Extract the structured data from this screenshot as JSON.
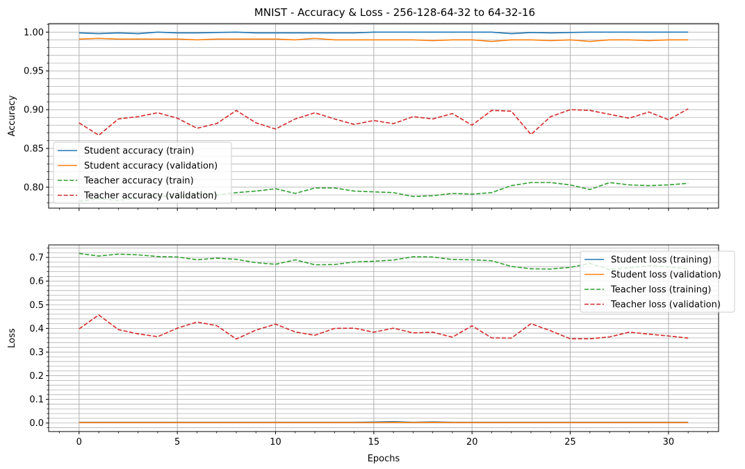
{
  "figure": {
    "title": "MNIST - Accuracy & Loss - 256-128-64-32 to 64-32-16"
  },
  "chart_data": [
    {
      "type": "line",
      "title": "MNIST - Accuracy & Loss - 256-128-64-32 to 64-32-16",
      "xlabel": "",
      "ylabel": "Accuracy",
      "xlim": [
        -1.55,
        32.55
      ],
      "ylim": [
        0.773,
        1.011
      ],
      "x": [
        0,
        1,
        2,
        3,
        4,
        5,
        6,
        7,
        8,
        9,
        10,
        11,
        12,
        13,
        14,
        15,
        16,
        17,
        18,
        19,
        20,
        21,
        22,
        23,
        24,
        25,
        26,
        27,
        28,
        29,
        30,
        31
      ],
      "xticks": [
        0,
        5,
        10,
        15,
        20,
        25,
        30
      ],
      "xtick_labels": [
        "0",
        "5",
        "10",
        "15",
        "20",
        "25",
        "30"
      ],
      "yticks": [
        0.8,
        0.85,
        0.9,
        0.95,
        1.0
      ],
      "ytick_labels": [
        "0.80",
        "0.85",
        "0.90",
        "0.95",
        "1.00"
      ],
      "grid": true,
      "minor_grid": true,
      "legend": "lower-left",
      "series": [
        {
          "name": "Student accuracy (train)",
          "color": "#1f77b4",
          "dash": "solid",
          "values": [
            0.999,
            0.998,
            0.999,
            0.998,
            1.0,
            0.999,
            0.999,
            0.9995,
            1.0,
            0.999,
            0.999,
            0.999,
            0.999,
            0.999,
            0.999,
            1.0,
            1.0,
            1.0,
            1.0,
            1.0,
            1.0,
            1.0,
            0.998,
            0.9995,
            0.999,
            0.9995,
            1.0,
            1.0,
            1.0,
            1.0,
            1.0,
            1.0
          ]
        },
        {
          "name": "Student accuracy (validation)",
          "color": "#ff7f0e",
          "dash": "solid",
          "values": [
            0.991,
            0.992,
            0.991,
            0.991,
            0.991,
            0.991,
            0.99,
            0.991,
            0.991,
            0.991,
            0.991,
            0.99,
            0.992,
            0.99,
            0.99,
            0.99,
            0.99,
            0.99,
            0.989,
            0.99,
            0.99,
            0.988,
            0.99,
            0.99,
            0.989,
            0.99,
            0.988,
            0.99,
            0.99,
            0.989,
            0.99,
            0.99
          ]
        },
        {
          "name": "Teacher accuracy (train)",
          "color": "#2ca02c",
          "dash": "dashed",
          "values": [
            0.782,
            0.785,
            0.783,
            0.786,
            0.789,
            0.787,
            0.791,
            0.79,
            0.793,
            0.795,
            0.798,
            0.792,
            0.799,
            0.799,
            0.795,
            0.794,
            0.793,
            0.788,
            0.789,
            0.792,
            0.791,
            0.793,
            0.802,
            0.806,
            0.806,
            0.803,
            0.797,
            0.806,
            0.803,
            0.802,
            0.803,
            0.805
          ]
        },
        {
          "name": "Teacher accuracy (validation)",
          "color": "#d62728",
          "dash": "dashed",
          "values": [
            0.883,
            0.867,
            0.888,
            0.891,
            0.896,
            0.889,
            0.876,
            0.882,
            0.899,
            0.883,
            0.875,
            0.888,
            0.896,
            0.888,
            0.881,
            0.886,
            0.882,
            0.891,
            0.888,
            0.895,
            0.88,
            0.899,
            0.898,
            0.868,
            0.891,
            0.9,
            0.899,
            0.894,
            0.889,
            0.897,
            0.887,
            0.901
          ]
        }
      ]
    },
    {
      "type": "line",
      "title": "",
      "xlabel": "Epochs",
      "ylabel": "Loss",
      "xlim": [
        -1.55,
        32.55
      ],
      "ylim": [
        -0.036,
        0.753
      ],
      "x": [
        0,
        1,
        2,
        3,
        4,
        5,
        6,
        7,
        8,
        9,
        10,
        11,
        12,
        13,
        14,
        15,
        16,
        17,
        18,
        19,
        20,
        21,
        22,
        23,
        24,
        25,
        26,
        27,
        28,
        29,
        30,
        31
      ],
      "xticks": [
        0,
        5,
        10,
        15,
        20,
        25,
        30
      ],
      "xtick_labels": [
        "0",
        "5",
        "10",
        "15",
        "20",
        "25",
        "30"
      ],
      "yticks": [
        0.0,
        0.1,
        0.2,
        0.3,
        0.4,
        0.5,
        0.6,
        0.7
      ],
      "ytick_labels": [
        "0.0",
        "0.1",
        "0.2",
        "0.3",
        "0.4",
        "0.5",
        "0.6",
        "0.7"
      ],
      "grid": true,
      "minor_grid": true,
      "legend": "upper-right",
      "series": [
        {
          "name": "Student loss (training)",
          "color": "#1f77b4",
          "dash": "solid",
          "values": [
            0.003,
            0.003,
            0.003,
            0.003,
            0.003,
            0.003,
            0.003,
            0.003,
            0.003,
            0.003,
            0.003,
            0.003,
            0.003,
            0.003,
            0.003,
            0.004,
            0.006,
            0.003,
            0.005,
            0.003,
            0.003,
            0.003,
            0.003,
            0.003,
            0.003,
            0.003,
            0.003,
            0.003,
            0.003,
            0.003,
            0.003,
            0.003
          ]
        },
        {
          "name": "Student loss (validation)",
          "color": "#ff7f0e",
          "dash": "solid",
          "values": [
            0.002,
            0.002,
            0.002,
            0.002,
            0.002,
            0.002,
            0.002,
            0.002,
            0.002,
            0.002,
            0.002,
            0.002,
            0.002,
            0.002,
            0.002,
            0.002,
            0.003,
            0.002,
            0.003,
            0.002,
            0.002,
            0.002,
            0.002,
            0.002,
            0.002,
            0.002,
            0.002,
            0.002,
            0.002,
            0.002,
            0.002,
            0.002
          ]
        },
        {
          "name": "Teacher loss (training)",
          "color": "#2ca02c",
          "dash": "dashed",
          "values": [
            0.717,
            0.706,
            0.714,
            0.711,
            0.704,
            0.702,
            0.69,
            0.697,
            0.692,
            0.678,
            0.671,
            0.69,
            0.669,
            0.67,
            0.681,
            0.684,
            0.689,
            0.703,
            0.702,
            0.691,
            0.69,
            0.686,
            0.662,
            0.652,
            0.651,
            0.658,
            0.675,
            0.649,
            0.656,
            0.665,
            0.66,
            0.652
          ]
        },
        {
          "name": "Teacher loss (validation)",
          "color": "#d62728",
          "dash": "dashed",
          "values": [
            0.398,
            0.457,
            0.395,
            0.377,
            0.365,
            0.401,
            0.427,
            0.412,
            0.355,
            0.393,
            0.418,
            0.385,
            0.371,
            0.4,
            0.401,
            0.384,
            0.401,
            0.381,
            0.384,
            0.363,
            0.411,
            0.36,
            0.359,
            0.42,
            0.39,
            0.356,
            0.356,
            0.364,
            0.384,
            0.376,
            0.368,
            0.359
          ]
        }
      ]
    }
  ]
}
